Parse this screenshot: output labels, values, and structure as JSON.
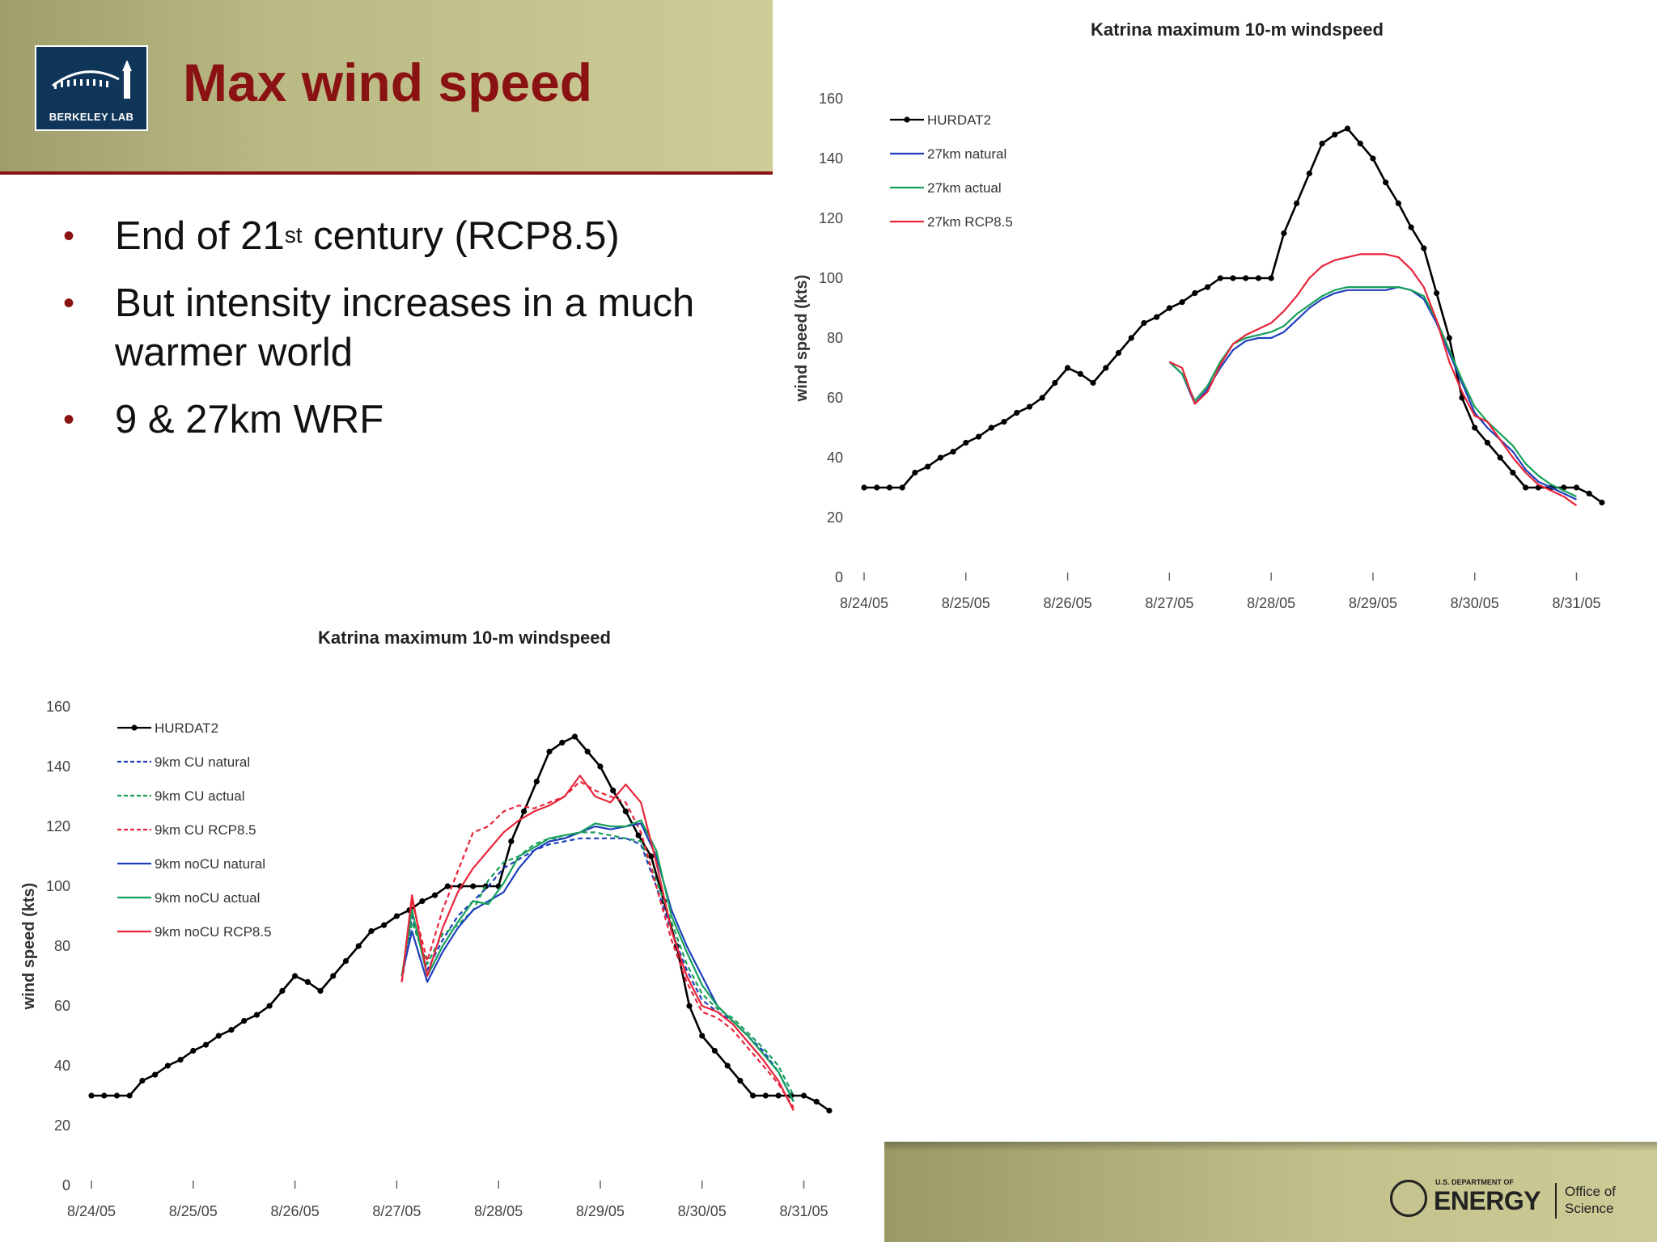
{
  "slide": {
    "title": "Max wind speed",
    "logo_text": "BERKELEY LAB",
    "bullets": [
      {
        "marker": "•",
        "text_before_sup": "End of 21",
        "sup": "st",
        "text_after_sup": " century (RCP8.5)"
      },
      {
        "marker": "•",
        "text": "But intensity increases in a much warmer world"
      },
      {
        "marker": "•",
        "text": "9 & 27km WRF"
      }
    ],
    "footer": {
      "doe_small": "U.S. DEPARTMENT OF",
      "doe_energy": "ENERGY",
      "office": "Office of",
      "science": "Science"
    }
  },
  "colors": {
    "title_red": "#8a1212",
    "hurdat2": "#000000",
    "natural": "#1f3fbf",
    "actual": "#17a05a",
    "rcp85": "#e8253a"
  },
  "chart_data": [
    {
      "type": "line",
      "title": "Katrina maximum 10-m windspeed",
      "xlabel": "",
      "ylabel": "wind speed (kts)",
      "ylim": [
        0,
        160
      ],
      "yticks": [
        0,
        20,
        40,
        60,
        80,
        100,
        120,
        140,
        160
      ],
      "xlim": [
        0,
        7.33
      ],
      "xticks": [
        0,
        1,
        2,
        3,
        4,
        5,
        6,
        7
      ],
      "xtick_labels": [
        "8/24/05",
        "8/25/05",
        "8/26/05",
        "8/27/05",
        "8/28/05",
        "8/29/05",
        "8/30/05",
        "8/31/05"
      ],
      "legend": "top-left",
      "series": [
        {
          "name": "HURDAT2",
          "color": "#000000",
          "dashed": false,
          "markers": true,
          "x": [
            0,
            0.125,
            0.25,
            0.375,
            0.5,
            0.625,
            0.75,
            0.875,
            1,
            1.125,
            1.25,
            1.375,
            1.5,
            1.625,
            1.75,
            1.875,
            2,
            2.125,
            2.25,
            2.375,
            2.5,
            2.625,
            2.75,
            2.875,
            3,
            3.125,
            3.25,
            3.375,
            3.5,
            3.625,
            3.75,
            3.875,
            4,
            4.125,
            4.25,
            4.375,
            4.5,
            4.625,
            4.75,
            4.875,
            5,
            5.125,
            5.25,
            5.375,
            5.5,
            5.625,
            5.75,
            5.875,
            6,
            6.125,
            6.25,
            6.375,
            6.5,
            6.625,
            6.75,
            6.875,
            7,
            7.125,
            7.25
          ],
          "y": [
            30,
            30,
            30,
            30,
            35,
            37,
            40,
            42,
            45,
            47,
            50,
            52,
            55,
            57,
            60,
            65,
            70,
            68,
            65,
            70,
            75,
            80,
            85,
            87,
            90,
            92,
            95,
            97,
            100,
            100,
            100,
            100,
            100,
            115,
            125,
            135,
            145,
            148,
            150,
            145,
            140,
            132,
            125,
            117,
            110,
            95,
            80,
            60,
            50,
            45,
            40,
            35,
            30,
            30,
            30,
            30,
            30,
            28,
            25
          ]
        },
        {
          "name": "27km natural",
          "color": "#1f3fbf",
          "dashed": false,
          "markers": false,
          "x": [
            3,
            3.125,
            3.25,
            3.375,
            3.5,
            3.625,
            3.75,
            3.875,
            4,
            4.125,
            4.25,
            4.375,
            4.5,
            4.625,
            4.75,
            4.875,
            5,
            5.125,
            5.25,
            5.375,
            5.5,
            5.625,
            5.75,
            5.875,
            6,
            6.125,
            6.25,
            6.375,
            6.5,
            6.625,
            6.75,
            6.875,
            7
          ],
          "y": [
            72,
            68,
            58,
            63,
            70,
            76,
            79,
            80,
            80,
            82,
            86,
            90,
            93,
            95,
            96,
            96,
            96,
            96,
            97,
            96,
            93,
            85,
            75,
            65,
            55,
            50,
            46,
            42,
            36,
            32,
            30,
            28,
            26
          ]
        },
        {
          "name": "27km actual",
          "color": "#17a05a",
          "dashed": false,
          "markers": false,
          "x": [
            3,
            3.125,
            3.25,
            3.375,
            3.5,
            3.625,
            3.75,
            3.875,
            4,
            4.125,
            4.25,
            4.375,
            4.5,
            4.625,
            4.75,
            4.875,
            5,
            5.125,
            5.25,
            5.375,
            5.5,
            5.625,
            5.75,
            5.875,
            6,
            6.125,
            6.25,
            6.375,
            6.5,
            6.625,
            6.75,
            6.875,
            7
          ],
          "y": [
            72,
            68,
            59,
            64,
            72,
            78,
            80,
            81,
            82,
            84,
            88,
            91,
            94,
            96,
            97,
            97,
            97,
            97,
            97,
            96,
            94,
            86,
            76,
            66,
            57,
            52,
            48,
            44,
            38,
            34,
            31,
            29,
            27
          ]
        },
        {
          "name": "27km RCP8.5",
          "color": "#e8253a",
          "dashed": false,
          "markers": false,
          "x": [
            3,
            3.125,
            3.25,
            3.375,
            3.5,
            3.625,
            3.75,
            3.875,
            4,
            4.125,
            4.25,
            4.375,
            4.5,
            4.625,
            4.75,
            4.875,
            5,
            5.125,
            5.25,
            5.375,
            5.5,
            5.625,
            5.75,
            5.875,
            6,
            6.125,
            6.25,
            6.375,
            6.5,
            6.625,
            6.75,
            6.875,
            7
          ],
          "y": [
            72,
            70,
            58,
            62,
            71,
            78,
            81,
            83,
            85,
            89,
            94,
            100,
            104,
            106,
            107,
            108,
            108,
            108,
            107,
            103,
            97,
            86,
            72,
            62,
            54,
            52,
            46,
            40,
            35,
            31,
            29,
            27,
            24
          ]
        }
      ]
    },
    {
      "type": "line",
      "title": "Katrina maximum 10-m windspeed",
      "xlabel": "",
      "ylabel": "wind speed (kts)",
      "ylim": [
        0,
        160
      ],
      "yticks": [
        0,
        20,
        40,
        60,
        80,
        100,
        120,
        140,
        160
      ],
      "xlim": [
        0,
        7.33
      ],
      "xticks": [
        0,
        1,
        2,
        3,
        4,
        5,
        6,
        7
      ],
      "xtick_labels": [
        "8/24/05",
        "8/25/05",
        "8/26/05",
        "8/27/05",
        "8/28/05",
        "8/29/05",
        "8/30/05",
        "8/31/05"
      ],
      "legend": "top-left",
      "series": [
        {
          "name": "HURDAT2",
          "color": "#000000",
          "dashed": false,
          "markers": true,
          "x": [
            0,
            0.125,
            0.25,
            0.375,
            0.5,
            0.625,
            0.75,
            0.875,
            1,
            1.125,
            1.25,
            1.375,
            1.5,
            1.625,
            1.75,
            1.875,
            2,
            2.125,
            2.25,
            2.375,
            2.5,
            2.625,
            2.75,
            2.875,
            3,
            3.125,
            3.25,
            3.375,
            3.5,
            3.625,
            3.75,
            3.875,
            4,
            4.125,
            4.25,
            4.375,
            4.5,
            4.625,
            4.75,
            4.875,
            5,
            5.125,
            5.25,
            5.375,
            5.5,
            5.625,
            5.75,
            5.875,
            6,
            6.125,
            6.25,
            6.375,
            6.5,
            6.625,
            6.75,
            6.875,
            7,
            7.125,
            7.25
          ],
          "y": [
            30,
            30,
            30,
            30,
            35,
            37,
            40,
            42,
            45,
            47,
            50,
            52,
            55,
            57,
            60,
            65,
            70,
            68,
            65,
            70,
            75,
            80,
            85,
            87,
            90,
            92,
            95,
            97,
            100,
            100,
            100,
            100,
            100,
            115,
            125,
            135,
            145,
            148,
            150,
            145,
            140,
            132,
            125,
            117,
            110,
            95,
            80,
            60,
            50,
            45,
            40,
            35,
            30,
            30,
            30,
            30,
            30,
            28,
            25
          ]
        },
        {
          "name": "9km CU natural",
          "color": "#1f3fbf",
          "dashed": true,
          "markers": false,
          "x": [
            3.05,
            3.15,
            3.3,
            3.45,
            3.6,
            3.75,
            3.9,
            4.05,
            4.2,
            4.35,
            4.5,
            4.65,
            4.8,
            4.95,
            5.1,
            5.25,
            5.4,
            5.55,
            5.7,
            5.85,
            6,
            6.15,
            6.3,
            6.45,
            6.6,
            6.75,
            6.9
          ],
          "y": [
            68,
            90,
            72,
            82,
            90,
            95,
            100,
            106,
            109,
            112,
            114,
            115,
            116,
            116,
            116,
            116,
            114,
            100,
            85,
            72,
            62,
            58,
            55,
            50,
            45,
            38,
            28
          ]
        },
        {
          "name": "9km CU actual",
          "color": "#17a05a",
          "dashed": true,
          "markers": false,
          "x": [
            3.05,
            3.15,
            3.3,
            3.45,
            3.6,
            3.75,
            3.9,
            4.05,
            4.2,
            4.35,
            4.5,
            4.65,
            4.8,
            4.95,
            5.1,
            5.25,
            5.4,
            5.55,
            5.7,
            5.85,
            6,
            6.15,
            6.3,
            6.45,
            6.6,
            6.75,
            6.9
          ],
          "y": [
            70,
            88,
            74,
            84,
            87,
            92,
            102,
            108,
            110,
            114,
            116,
            116,
            118,
            118,
            117,
            116,
            115,
            102,
            88,
            74,
            64,
            59,
            56,
            51,
            46,
            40,
            30
          ]
        },
        {
          "name": "9km CU RCP8.5",
          "color": "#e8253a",
          "dashed": true,
          "markers": false,
          "x": [
            3.05,
            3.15,
            3.3,
            3.45,
            3.6,
            3.75,
            3.9,
            4.05,
            4.2,
            4.35,
            4.5,
            4.65,
            4.8,
            4.95,
            5.1,
            5.25,
            5.4,
            5.55,
            5.7,
            5.85,
            6,
            6.15,
            6.3,
            6.45,
            6.6,
            6.75,
            6.9
          ],
          "y": [
            68,
            95,
            75,
            92,
            105,
            118,
            120,
            125,
            127,
            126,
            128,
            130,
            135,
            132,
            130,
            128,
            118,
            100,
            82,
            68,
            58,
            56,
            52,
            46,
            40,
            34,
            26
          ]
        },
        {
          "name": "9km noCU natural",
          "color": "#1f3fbf",
          "dashed": false,
          "markers": false,
          "x": [
            3.05,
            3.15,
            3.3,
            3.45,
            3.6,
            3.75,
            3.9,
            4.05,
            4.2,
            4.35,
            4.5,
            4.65,
            4.8,
            4.95,
            5.1,
            5.25,
            5.4,
            5.55,
            5.7,
            5.85,
            6,
            6.15,
            6.3,
            6.45,
            6.6,
            6.75,
            6.9
          ],
          "y": [
            70,
            85,
            68,
            78,
            86,
            92,
            95,
            98,
            106,
            112,
            115,
            116,
            118,
            120,
            119,
            120,
            121,
            110,
            92,
            80,
            70,
            60,
            55,
            50,
            44,
            38,
            28
          ]
        },
        {
          "name": "9km noCU actual",
          "color": "#17a05a",
          "dashed": false,
          "markers": false,
          "x": [
            3.05,
            3.15,
            3.3,
            3.45,
            3.6,
            3.75,
            3.9,
            4.05,
            4.2,
            4.35,
            4.5,
            4.65,
            4.8,
            4.95,
            5.1,
            5.25,
            5.4,
            5.55,
            5.7,
            5.85,
            6,
            6.15,
            6.3,
            6.45,
            6.6,
            6.75,
            6.9
          ],
          "y": [
            70,
            92,
            70,
            80,
            88,
            95,
            94,
            101,
            110,
            113,
            116,
            117,
            118,
            121,
            120,
            120,
            122,
            112,
            90,
            78,
            67,
            60,
            55,
            50,
            44,
            38,
            28
          ]
        },
        {
          "name": "9km noCU RCP8.5",
          "color": "#e8253a",
          "dashed": false,
          "markers": false,
          "x": [
            3.05,
            3.15,
            3.3,
            3.45,
            3.6,
            3.75,
            3.9,
            4.05,
            4.2,
            4.35,
            4.5,
            4.65,
            4.8,
            4.95,
            5.1,
            5.25,
            5.4,
            5.55,
            5.7,
            5.85,
            6,
            6.15,
            6.3,
            6.45,
            6.6,
            6.75,
            6.9
          ],
          "y": [
            68,
            97,
            70,
            86,
            98,
            106,
            112,
            118,
            122,
            125,
            127,
            130,
            137,
            130,
            128,
            134,
            128,
            108,
            85,
            70,
            60,
            58,
            54,
            48,
            42,
            35,
            25
          ]
        }
      ]
    }
  ]
}
